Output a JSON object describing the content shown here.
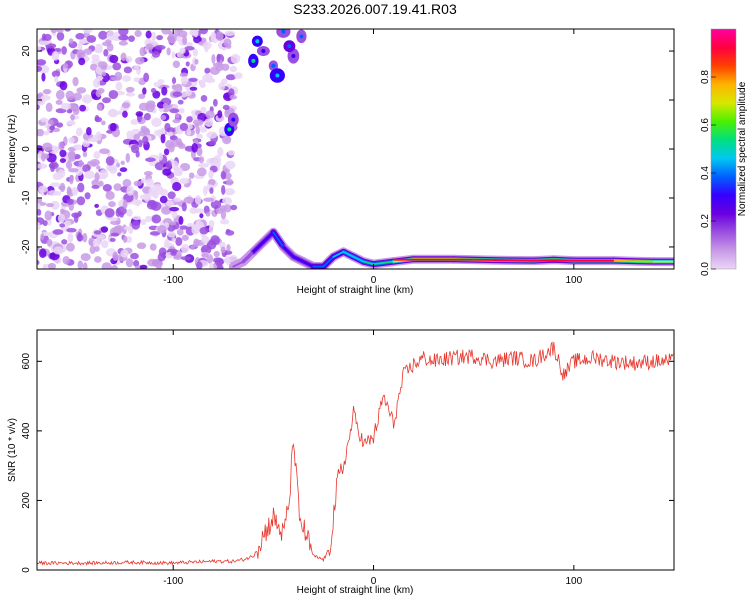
{
  "title": "S233.2026.007.19.41.R03",
  "colors": {
    "snr_line": "#e8372e",
    "colormap": [
      "#ead6f6",
      "#c89ae6",
      "#9b4fe0",
      "#6a00e0",
      "#3600ff",
      "#0060ff",
      "#00c8f0",
      "#00e080",
      "#4cf000",
      "#d8e800",
      "#ffb400",
      "#ff4000",
      "#ff0040",
      "#ff00a0"
    ]
  },
  "chart_data": [
    {
      "type": "heatmap",
      "xlabel": "Height of straight line (km)",
      "ylabel": "Frequency (Hz)",
      "xlim": [
        -168,
        150
      ],
      "ylim": [
        -24.5,
        24.5
      ],
      "xticks": [
        "-100",
        "0",
        "100"
      ],
      "yticks": [
        "-20",
        "-10",
        "0",
        "10",
        "20"
      ],
      "colorbar": {
        "label": "Normalized spectral amplitude",
        "range": [
          0.0,
          1.0
        ],
        "ticks": [
          "0.0",
          "0.2",
          "0.4",
          "0.6",
          "0.8"
        ]
      },
      "features": {
        "noise_region_x": [
          -168,
          -70
        ],
        "signal_trace": {
          "x": [
            -70,
            -65,
            -60,
            -55,
            -50,
            -45,
            -40,
            -35,
            -30,
            -25,
            -20,
            -15,
            -10,
            -5,
            0,
            10,
            20,
            40,
            60,
            80,
            90,
            100,
            120,
            140,
            150
          ],
          "freq": [
            -24,
            -23,
            -21,
            -19,
            -17,
            -20,
            -22,
            -23,
            -24,
            -24,
            -22,
            -21,
            -22,
            -23,
            -23.5,
            -23,
            -22.5,
            -22.5,
            -22.7,
            -22.8,
            -22.6,
            -22.8,
            -22.8,
            -23,
            -23
          ],
          "amplitude": [
            0.15,
            0.2,
            0.3,
            0.35,
            0.4,
            0.35,
            0.3,
            0.35,
            0.4,
            0.4,
            0.45,
            0.5,
            0.5,
            0.55,
            0.6,
            0.75,
            0.85,
            0.85,
            0.9,
            0.92,
            0.9,
            0.92,
            0.85,
            0.7,
            0.6
          ]
        }
      }
    },
    {
      "type": "line",
      "xlabel": "Height of straight line (km)",
      "ylabel": "SNR (10 * v/v)",
      "xlim": [
        -168,
        150
      ],
      "ylim": [
        0,
        690
      ],
      "xticks": [
        "-100",
        "0",
        "100"
      ],
      "yticks": [
        "0",
        "200",
        "400",
        "600"
      ],
      "series": [
        {
          "x": [
            -168,
            -140,
            -120,
            -100,
            -80,
            -70,
            -65,
            -60,
            -55,
            -50,
            -45,
            -42,
            -40,
            -37,
            -35,
            -30,
            -25,
            -22,
            -18,
            -15,
            -12,
            -10,
            -5,
            0,
            5,
            10,
            15,
            20,
            25,
            30,
            40,
            50,
            60,
            70,
            80,
            90,
            95,
            100,
            110,
            120,
            130,
            140,
            150
          ],
          "values": [
            20,
            20,
            22,
            20,
            25,
            25,
            30,
            40,
            100,
            150,
            100,
            200,
            380,
            150,
            120,
            40,
            30,
            60,
            250,
            300,
            380,
            450,
            360,
            380,
            500,
            420,
            560,
            590,
            610,
            600,
            610,
            615,
            600,
            610,
            600,
            640,
            560,
            600,
            610,
            600,
            595,
            600,
            600
          ]
        }
      ]
    }
  ]
}
